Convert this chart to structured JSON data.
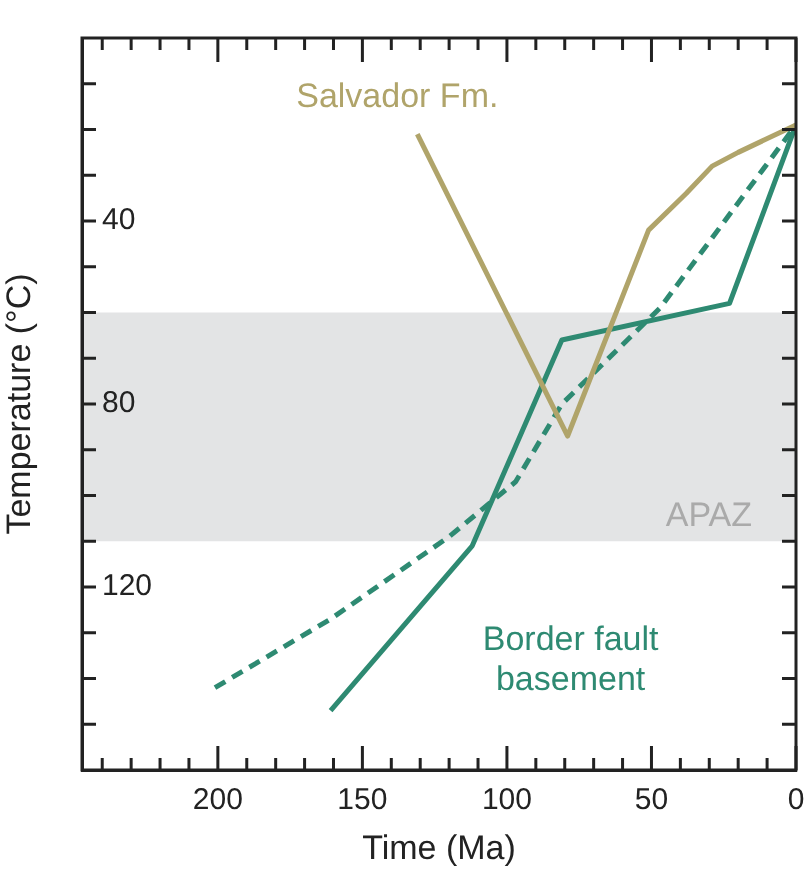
{
  "chart_data": {
    "type": "line",
    "xlabel": "Time (Ma)",
    "ylabel": "Temperature (°C)",
    "xlim": [
      247,
      0
    ],
    "ylim": [
      160,
      0
    ],
    "xticks": [
      {
        "value": 240,
        "label": null
      },
      {
        "value": 230,
        "label": null
      },
      {
        "value": 220,
        "label": null
      },
      {
        "value": 210,
        "label": null
      },
      200,
      {
        "value": 190,
        "label": null
      },
      {
        "value": 180,
        "label": null
      },
      {
        "value": 170,
        "label": null
      },
      {
        "value": 160,
        "label": null
      },
      150,
      {
        "value": 140,
        "label": null
      },
      {
        "value": 130,
        "label": null
      },
      {
        "value": 120,
        "label": null
      },
      {
        "value": 110,
        "label": null
      },
      100,
      {
        "value": 90,
        "label": null
      },
      {
        "value": 80,
        "label": null
      },
      {
        "value": 70,
        "label": null
      },
      {
        "value": 60,
        "label": null
      },
      50,
      {
        "value": 40,
        "label": null
      },
      {
        "value": 30,
        "label": null
      },
      {
        "value": 20,
        "label": null
      },
      {
        "value": 10,
        "label": null
      },
      0
    ],
    "yticks": [
      {
        "value": 10,
        "label": null
      },
      {
        "value": 20,
        "label": null
      },
      {
        "value": 30,
        "label": null
      },
      40,
      {
        "value": 50,
        "label": null
      },
      {
        "value": 60,
        "label": null
      },
      {
        "value": 70,
        "label": null
      },
      80,
      {
        "value": 90,
        "label": null
      },
      {
        "value": 100,
        "label": null
      },
      {
        "value": 110,
        "label": null
      },
      120,
      {
        "value": 130,
        "label": null
      },
      {
        "value": 140,
        "label": null
      },
      {
        "value": 150,
        "label": null
      }
    ],
    "series": [
      {
        "name": "Salvador Fm.",
        "color": "#b0a46a",
        "line_style": "solid",
        "x": [
          131,
          79,
          51,
          38,
          29,
          20,
          0
        ],
        "values": [
          21,
          87,
          42,
          34,
          28,
          25,
          19
        ]
      },
      {
        "name": "Border fault basement",
        "color": "#2e8a72",
        "line_style": "solid",
        "x": [
          161,
          112,
          81,
          23,
          0
        ],
        "values": [
          147,
          111,
          66,
          58,
          19
        ]
      },
      {
        "color": "#2e8a72",
        "line_style": "dashed",
        "x": [
          201,
          161,
          120,
          97,
          81,
          47,
          0
        ],
        "values": [
          142,
          127,
          109,
          97,
          80,
          59,
          19
        ]
      }
    ],
    "bands": [
      {
        "axis": "y",
        "from": 60,
        "to": 110,
        "label": "APAZ",
        "color": "#e3e4e5"
      }
    ],
    "grid": false,
    "legend": false,
    "marker": "none"
  }
}
